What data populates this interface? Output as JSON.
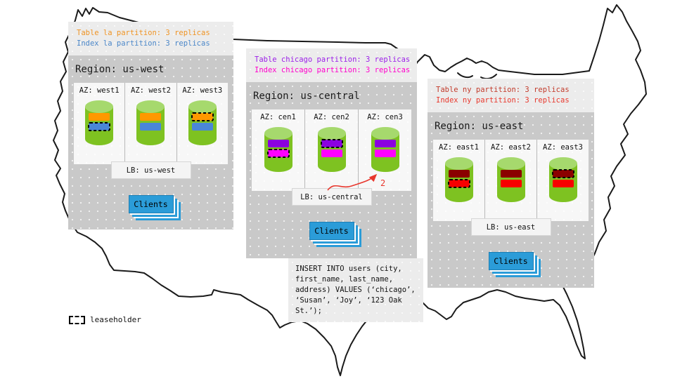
{
  "map": {
    "name": "united-states-outline",
    "stroke_color": "#1a1a1a"
  },
  "regions": [
    {
      "id": "us-west",
      "caption_lines": [
        {
          "text": "Table la partition: 3 replicas",
          "color": "#ef9425"
        },
        {
          "text": "Index la partition: 3 replicas",
          "color": "#4a86c8"
        }
      ],
      "title": "Region: us-west",
      "table_color": "#ff9800",
      "index_color": "#4a86d8",
      "azs": [
        {
          "label": "AZ: west1",
          "table_leaseholder": false,
          "index_leaseholder": true
        },
        {
          "label": "AZ: west2",
          "table_leaseholder": false,
          "index_leaseholder": false
        },
        {
          "label": "AZ: west3",
          "table_leaseholder": true,
          "index_leaseholder": false
        }
      ],
      "lb_label": "LB: us-west",
      "clients_label": "Clients"
    },
    {
      "id": "us-central",
      "caption_lines": [
        {
          "text": "Table chicago partition: 3 replicas",
          "color": "#9b1fe8"
        },
        {
          "text": "Index chicago partition: 3 replicas",
          "color": "#ff00cc"
        }
      ],
      "title": "Region: us-central",
      "table_color": "#8b00e0",
      "index_color": "#ff00ff",
      "azs": [
        {
          "label": "AZ: cen1",
          "table_leaseholder": false,
          "index_leaseholder": true
        },
        {
          "label": "AZ: cen2",
          "table_leaseholder": true,
          "index_leaseholder": false
        },
        {
          "label": "AZ: cen3",
          "table_leaseholder": false,
          "index_leaseholder": false
        }
      ],
      "lb_label": "LB: us-central",
      "clients_label": "Clients",
      "annotation": {
        "label": "2",
        "color": "#e8372d"
      }
    },
    {
      "id": "us-east",
      "caption_lines": [
        {
          "text": "Table ny partition: 3 replicas",
          "color": "#c23b2b"
        },
        {
          "text": "Index ny partition: 3 replicas",
          "color": "#e8382d"
        }
      ],
      "title": "Region: us-east",
      "table_color": "#8b0000",
      "index_color": "#f70000",
      "azs": [
        {
          "label": "AZ: east1",
          "table_leaseholder": false,
          "index_leaseholder": true
        },
        {
          "label": "AZ: east2",
          "table_leaseholder": false,
          "index_leaseholder": false
        },
        {
          "label": "AZ: east3",
          "table_leaseholder": true,
          "index_leaseholder": false
        }
      ],
      "lb_label": "LB: us-east",
      "clients_label": "Clients"
    }
  ],
  "sql_note": "INSERT INTO users (city,\nfirst_name, last_name,\naddress) VALUES (‘chicago’,\n‘Susan’, ‘Joy’, ‘123 Oak\nSt.’);",
  "legend": {
    "label": "leaseholder"
  },
  "cylinder": {
    "body_color": "#7ec221",
    "top_color": "#a6d96d"
  }
}
